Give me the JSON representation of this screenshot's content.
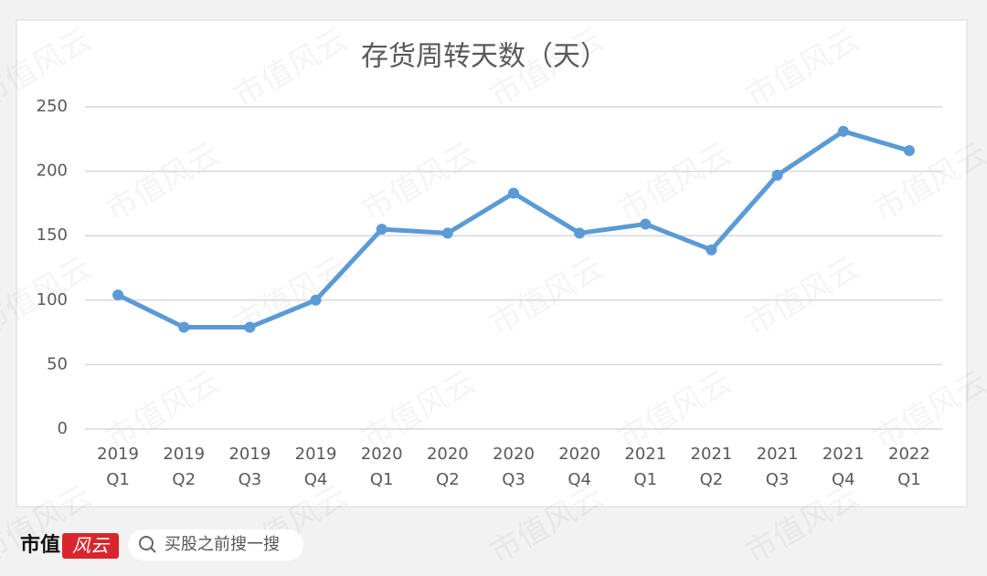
{
  "chart_data": {
    "type": "line",
    "title": "存货周转天数（天）",
    "categories": [
      [
        "2019",
        "Q1"
      ],
      [
        "2019",
        "Q2"
      ],
      [
        "2019",
        "Q3"
      ],
      [
        "2019",
        "Q4"
      ],
      [
        "2020",
        "Q1"
      ],
      [
        "2020",
        "Q2"
      ],
      [
        "2020",
        "Q3"
      ],
      [
        "2020",
        "Q4"
      ],
      [
        "2021",
        "Q1"
      ],
      [
        "2021",
        "Q2"
      ],
      [
        "2021",
        "Q3"
      ],
      [
        "2021",
        "Q4"
      ],
      [
        "2022",
        "Q1"
      ]
    ],
    "values": [
      104,
      79,
      79,
      100,
      155,
      152,
      183,
      152,
      159,
      139,
      197,
      231,
      216
    ],
    "color": "#5b9bd5",
    "ylim": [
      0,
      250
    ],
    "yticks": [
      0,
      50,
      100,
      150,
      200,
      250
    ],
    "grid": true
  },
  "watermark": "市值风云",
  "footer": {
    "brand": "市值",
    "logo": "风云",
    "search": "买股之前搜一搜"
  }
}
